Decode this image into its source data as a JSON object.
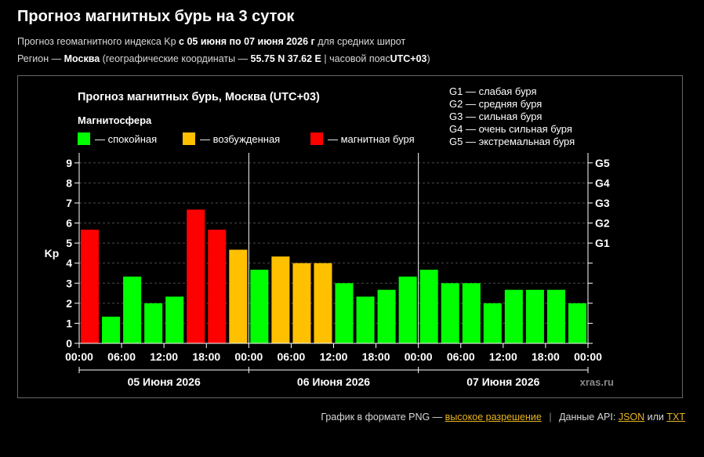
{
  "header": {
    "title": "Прогноз магнитных бурь на 3 суток",
    "line1_prefix": "Прогноз геомагнитного индекса Kp",
    "line1_range": "с 05 июня по 07 июня 2026 г",
    "line1_suffix": "для средних широт",
    "line2_prefix": "Регион —",
    "line2_region": "Москва",
    "line2_mid": "(географические координаты —",
    "line2_coords": "55.75 N 37.62 E",
    "line2_tz_label": "| часовой пояс",
    "line2_tz": "UTC+03",
    "line2_end": ")"
  },
  "chart_data": {
    "type": "bar",
    "title": "Прогноз магнитных бурь, Москва (UTC+03)",
    "ylabel": "Kp",
    "ylim": [
      0,
      9.5
    ],
    "yticks": [
      "0",
      "1",
      "2",
      "3",
      "4",
      "5",
      "6",
      "7",
      "8",
      "9"
    ],
    "gticks": [
      "G1",
      "G2",
      "G3",
      "G4",
      "G5"
    ],
    "xtick_labels": [
      "00:00",
      "06:00",
      "12:00",
      "18:00",
      "00:00",
      "06:00",
      "12:00",
      "18:00",
      "00:00",
      "06:00",
      "12:00",
      "18:00",
      "00:00"
    ],
    "day_labels": [
      "05 Июня 2026",
      "06 Июня 2026",
      "07 Июня 2026"
    ],
    "legend_title": "Магнитосфера",
    "legend": [
      {
        "label": "— спокойная",
        "color": "#00ff00"
      },
      {
        "label": "— возбужденная",
        "color": "#ffc000"
      },
      {
        "label": "— магнитная буря",
        "color": "#ff0000"
      }
    ],
    "g_scale": [
      "G1 — слабая буря",
      "G2 — средняя буря",
      "G3 — сильная буря",
      "G4 — очень сильная буря",
      "G5 — экстремальная буря"
    ],
    "values": [
      5.67,
      1.33,
      3.33,
      2.0,
      2.33,
      6.67,
      5.67,
      4.67,
      3.67,
      4.33,
      4.0,
      4.0,
      3.0,
      2.33,
      2.67,
      3.33,
      3.67,
      3.0,
      3.0,
      2.0,
      2.67,
      2.67,
      2.67,
      2.0
    ],
    "colors": {
      "quiet": "#00ff00",
      "active": "#ffc000",
      "storm": "#ff0000"
    },
    "watermark": "xras.ru"
  },
  "footer": {
    "png_text": "График в формате PNG —",
    "png_link": "высокое разрешение",
    "api_text": "Данные API:",
    "json_link": "JSON",
    "or_text": "или",
    "txt_link": "TXT"
  }
}
